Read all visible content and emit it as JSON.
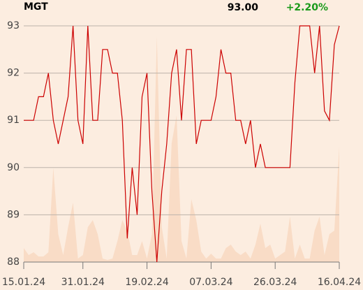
{
  "chart_data": {
    "type": "line",
    "title": "MGT",
    "last_price": "93.00",
    "change": "+2.20%",
    "change_color": "#1a9a1a",
    "background": "#fcede0",
    "grid": true,
    "x": [
      0,
      1,
      2,
      3,
      4,
      5,
      6,
      7,
      8,
      9,
      10,
      11,
      12,
      13,
      14,
      15,
      16,
      17,
      18,
      19,
      20,
      21,
      22,
      23,
      24,
      25,
      26,
      27,
      28,
      29,
      30,
      31,
      32,
      33,
      34,
      35,
      36,
      37,
      38,
      39,
      40,
      41,
      42,
      43,
      44,
      45,
      46,
      47,
      48,
      49,
      50,
      51,
      52,
      53,
      54,
      55,
      56,
      57,
      58,
      59,
      60,
      61,
      62,
      63,
      64
    ],
    "xlim": [
      0,
      64
    ],
    "xticks": [
      {
        "value": 0,
        "label": "15.01.24"
      },
      {
        "value": 12,
        "label": "31.01.24"
      },
      {
        "value": 25,
        "label": "19.02.24"
      },
      {
        "value": 38,
        "label": "07.03.24"
      },
      {
        "value": 51,
        "label": "26.03.24"
      },
      {
        "value": 64,
        "label": "16.04.24"
      }
    ],
    "ylim": [
      88,
      93
    ],
    "yticks": [
      88,
      89,
      90,
      91,
      92,
      93
    ],
    "series": [
      {
        "color": "#cc0000",
        "values": [
          91,
          91,
          91,
          91.5,
          91.5,
          92,
          91,
          90.5,
          91,
          91.5,
          93,
          91,
          90.5,
          93,
          91,
          91,
          92.5,
          92.5,
          92,
          92,
          91,
          88.5,
          90,
          89,
          91.5,
          92,
          89.5,
          88,
          89.5,
          90.5,
          92,
          92.5,
          91,
          92.5,
          92.5,
          90.5,
          91,
          91,
          91,
          91.5,
          92.5,
          92,
          92,
          91,
          91,
          90.5,
          91,
          90,
          90.5,
          90,
          90,
          90,
          90,
          90,
          90,
          91.8,
          93,
          93,
          93,
          92,
          93,
          91.2,
          91,
          92.6,
          93
        ]
      }
    ],
    "volume": {
      "color": "#f9dcc6",
      "values": [
        20,
        10,
        14,
        8,
        8,
        14,
        135,
        40,
        10,
        50,
        85,
        5,
        10,
        50,
        60,
        40,
        5,
        3,
        5,
        30,
        60,
        45,
        10,
        10,
        30,
        5,
        40,
        323,
        50,
        5,
        170,
        210,
        30,
        5,
        90,
        60,
        15,
        5,
        12,
        5,
        5,
        20,
        25,
        15,
        10,
        15,
        5,
        25,
        55,
        20,
        25,
        5,
        10,
        15,
        65,
        5,
        25,
        5,
        5,
        45,
        65,
        10,
        40,
        45,
        165
      ]
    }
  }
}
